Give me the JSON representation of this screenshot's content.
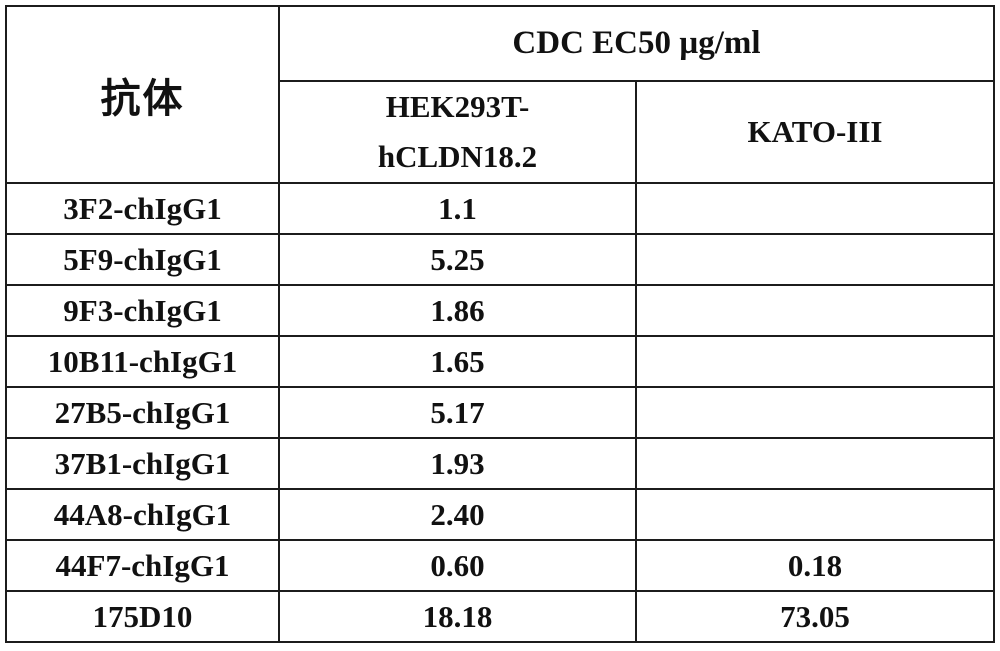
{
  "table": {
    "antibody_header": "抗体",
    "cdc_header": "CDC EC50 µg/ml",
    "col_hek_line1": "HEK293T-",
    "col_hek_line2": "hCLDN18.2",
    "col_kato": "KATO-III",
    "rows": [
      {
        "antibody": "3F2-chIgG1",
        "hek": "1.1",
        "kato": ""
      },
      {
        "antibody": "5F9-chIgG1",
        "hek": "5.25",
        "kato": ""
      },
      {
        "antibody": "9F3-chIgG1",
        "hek": "1.86",
        "kato": ""
      },
      {
        "antibody": "10B11-chIgG1",
        "hek": "1.65",
        "kato": ""
      },
      {
        "antibody": "27B5-chIgG1",
        "hek": "5.17",
        "kato": ""
      },
      {
        "antibody": "37B1-chIgG1",
        "hek": "1.93",
        "kato": ""
      },
      {
        "antibody": "44A8-chIgG1",
        "hek": "2.40",
        "kato": ""
      },
      {
        "antibody": "44F7-chIgG1",
        "hek": "0.60",
        "kato": "0.18"
      },
      {
        "antibody": "175D10",
        "hek": "18.18",
        "kato": "73.05"
      }
    ]
  },
  "colors": {
    "border": "#1c1c1c",
    "text": "#111111",
    "background": "#ffffff"
  },
  "chart_data": {
    "type": "table",
    "title": "CDC EC50 µg/ml",
    "columns": [
      "抗体",
      "HEK293T-hCLDN18.2",
      "KATO-III"
    ],
    "rows": [
      [
        "3F2-chIgG1",
        1.1,
        null
      ],
      [
        "5F9-chIgG1",
        5.25,
        null
      ],
      [
        "9F3-chIgG1",
        1.86,
        null
      ],
      [
        "10B11-chIgG1",
        1.65,
        null
      ],
      [
        "27B5-chIgG1",
        5.17,
        null
      ],
      [
        "37B1-chIgG1",
        1.93,
        null
      ],
      [
        "44A8-chIgG1",
        2.4,
        null
      ],
      [
        "44F7-chIgG1",
        0.6,
        0.18
      ],
      [
        "175D10",
        18.18,
        73.05
      ]
    ]
  }
}
